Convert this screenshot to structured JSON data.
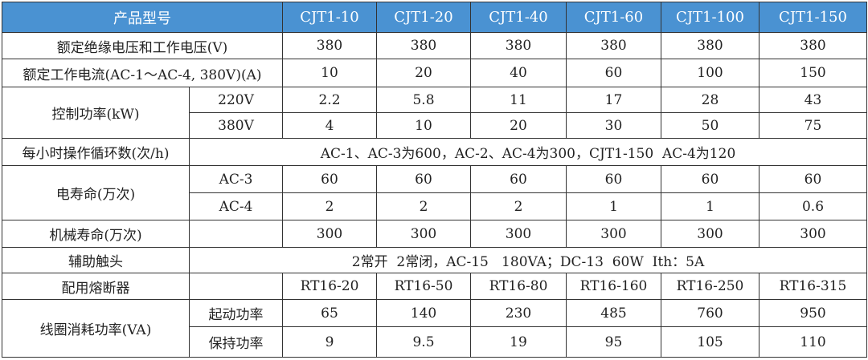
{
  "header": {
    "label": "产品型号",
    "models": [
      "CJT1-10",
      "CJT1-20",
      "CJT1-40",
      "CJT1-60",
      "CJT1-100",
      "CJT1-150"
    ]
  },
  "rows": {
    "insulation": {
      "label": "额定绝缘电压和工作电压(V)",
      "values": [
        "380",
        "380",
        "380",
        "380",
        "380",
        "380"
      ]
    },
    "current": {
      "label": "额定工作电流(AC-1～AC-4, 380V)(A)",
      "values": [
        "10",
        "20",
        "40",
        "60",
        "100",
        "150"
      ]
    },
    "control_power": {
      "label": "控制功率(kW)",
      "sub": [
        {
          "label": "220V",
          "values": [
            "2.2",
            "5.8",
            "11",
            "17",
            "28",
            "43"
          ]
        },
        {
          "label": "380V",
          "values": [
            "4",
            "10",
            "20",
            "30",
            "50",
            "75"
          ]
        }
      ]
    },
    "cycles": {
      "label": "每小时操作循环数(次/h)",
      "value": "AC-1、AC-3为600，AC-2、AC-4为300，CJT1-150  AC-4为120"
    },
    "electrical_life": {
      "label": "电寿命(万次)",
      "sub": [
        {
          "label": "AC-3",
          "values": [
            "60",
            "60",
            "60",
            "60",
            "60",
            "60"
          ]
        },
        {
          "label": "AC-4",
          "values": [
            "2",
            "2",
            "2",
            "1",
            "1",
            "0.6"
          ]
        }
      ]
    },
    "mechanical_life": {
      "label": "机械寿命(万次)",
      "values": [
        "300",
        "300",
        "300",
        "300",
        "300",
        "300"
      ]
    },
    "aux_contacts": {
      "label": "辅助触头",
      "value": "2常开  2常闭，AC-15   180VA；DC-13  60W  Ith：5A"
    },
    "fuse": {
      "label": "配用熔断器",
      "values": [
        "RT16-20",
        "RT16-50",
        "RT16-80",
        "RT16-160",
        "RT16-250",
        "RT16-315"
      ]
    },
    "coil_power": {
      "label": "线圈消耗功率(VA)",
      "sub": [
        {
          "label": "起动功率",
          "values": [
            "65",
            "140",
            "230",
            "485",
            "760",
            "950"
          ]
        },
        {
          "label": "保持功率",
          "values": [
            "9",
            "9.5",
            "19",
            "95",
            "105",
            "110"
          ]
        }
      ]
    }
  },
  "colors": {
    "header_bg": "#4a92d2",
    "header_text": "#ffffff",
    "border": "#333333"
  }
}
